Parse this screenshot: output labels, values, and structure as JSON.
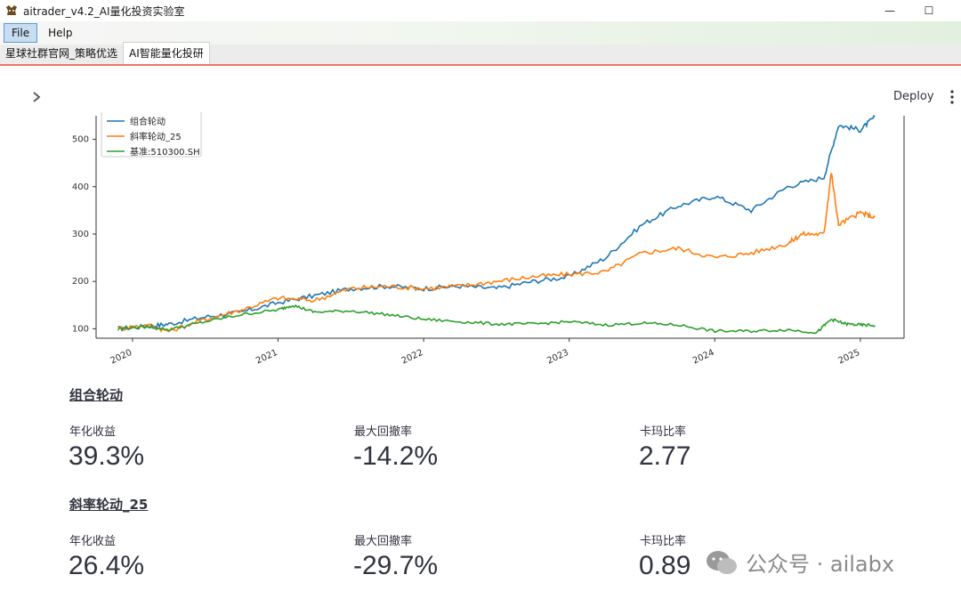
{
  "window": {
    "title": "aitrader_v4.2_AI量化投资实验室",
    "minimize": "—",
    "maximize": "☐"
  },
  "menu": [
    {
      "label": "File"
    },
    {
      "label": "Help"
    }
  ],
  "tabs": [
    {
      "label": "星球社群官网_策略优选"
    },
    {
      "label": "AI智能量化投研"
    }
  ],
  "toolbar": {
    "deploy_label": "Deploy"
  },
  "chart_data": {
    "type": "line",
    "ylim": [
      80,
      550
    ],
    "yticks": [
      100,
      200,
      300,
      400,
      500
    ],
    "xticks": [
      "2020",
      "2021",
      "2022",
      "2023",
      "2024",
      "2025"
    ],
    "legend_placement": "top-left",
    "series": [
      {
        "name": "组合轮动",
        "color": "#1f77b4",
        "x": [
          2019.9,
          2020.1,
          2020.25,
          2020.5,
          2020.75,
          2021.0,
          2021.25,
          2021.5,
          2021.75,
          2022.0,
          2022.25,
          2022.5,
          2022.75,
          2023.0,
          2023.25,
          2023.5,
          2023.75,
          2024.0,
          2024.25,
          2024.5,
          2024.75,
          2024.85,
          2025.0,
          2025.1
        ],
        "values": [
          100,
          105,
          110,
          125,
          135,
          155,
          170,
          185,
          190,
          185,
          190,
          185,
          200,
          210,
          250,
          320,
          360,
          380,
          350,
          400,
          420,
          530,
          520,
          548
        ]
      },
      {
        "name": "斜率轮动_25",
        "color": "#ff7f0e",
        "x": [
          2019.9,
          2020.1,
          2020.25,
          2020.5,
          2020.75,
          2021.0,
          2021.25,
          2021.5,
          2021.75,
          2022.0,
          2022.25,
          2022.5,
          2022.75,
          2023.0,
          2023.25,
          2023.5,
          2023.75,
          2024.0,
          2024.25,
          2024.5,
          2024.6,
          2024.75,
          2024.8,
          2024.85,
          2025.0,
          2025.1
        ],
        "values": [
          100,
          108,
          95,
          120,
          140,
          165,
          160,
          185,
          190,
          185,
          190,
          200,
          210,
          215,
          220,
          260,
          270,
          250,
          260,
          280,
          300,
          300,
          430,
          320,
          345,
          335
        ]
      },
      {
        "name": "基准:510300.SH",
        "color": "#2ca02c",
        "x": [
          2019.9,
          2020.1,
          2020.25,
          2020.5,
          2020.75,
          2021.0,
          2021.1,
          2021.25,
          2021.5,
          2021.75,
          2022.0,
          2022.25,
          2022.5,
          2022.75,
          2023.0,
          2023.25,
          2023.5,
          2023.75,
          2024.0,
          2024.25,
          2024.5,
          2024.7,
          2024.8,
          2024.9,
          2025.0,
          2025.1
        ],
        "values": [
          100,
          105,
          98,
          115,
          130,
          140,
          150,
          135,
          138,
          130,
          120,
          115,
          110,
          110,
          115,
          108,
          112,
          108,
          95,
          95,
          98,
          92,
          120,
          110,
          108,
          107
        ]
      }
    ]
  },
  "strategies": [
    {
      "name": "组合轮动",
      "metrics": [
        {
          "label": "年化收益",
          "value": "39.3%"
        },
        {
          "label": "最大回撤率",
          "value": "-14.2%"
        },
        {
          "label": "卡玛比率",
          "value": "2.77"
        }
      ]
    },
    {
      "name": "斜率轮动_25",
      "metrics": [
        {
          "label": "年化收益",
          "value": "26.4%"
        },
        {
          "label": "最大回撤率",
          "value": "-29.7%"
        },
        {
          "label": "卡玛比率",
          "value": "0.89"
        }
      ]
    }
  ],
  "watermark": {
    "text": "公众号 · ailabx"
  }
}
